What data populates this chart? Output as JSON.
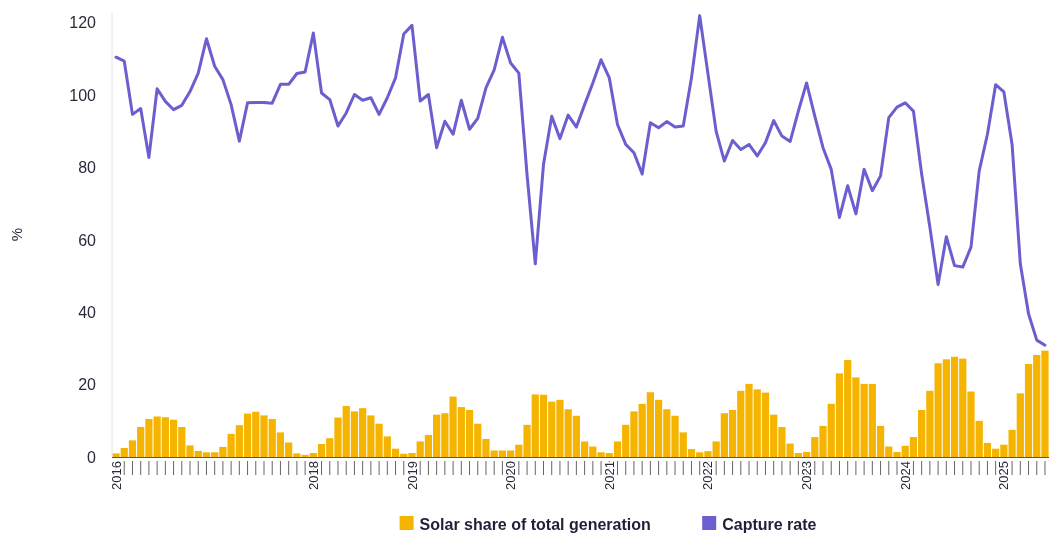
{
  "chart_data": {
    "type": "bar",
    "ylabel": "%",
    "categories": [
      "2016",
      null,
      null,
      null,
      null,
      null,
      null,
      null,
      null,
      null,
      null,
      null,
      null,
      null,
      null,
      null,
      null,
      null,
      null,
      null,
      null,
      null,
      null,
      null,
      "2018",
      null,
      null,
      null,
      null,
      null,
      null,
      null,
      null,
      null,
      null,
      null,
      "2019",
      null,
      null,
      null,
      null,
      null,
      null,
      null,
      null,
      null,
      null,
      null,
      "2020",
      null,
      null,
      null,
      null,
      null,
      null,
      null,
      null,
      null,
      null,
      null,
      "2021",
      null,
      null,
      null,
      null,
      null,
      null,
      null,
      null,
      null,
      null,
      null,
      "2022",
      null,
      null,
      null,
      null,
      null,
      null,
      null,
      null,
      null,
      null,
      null,
      "2023",
      null,
      null,
      null,
      null,
      null,
      null,
      null,
      null,
      null,
      null,
      null,
      "2024",
      null,
      null,
      null,
      null,
      null,
      null,
      null,
      null,
      null,
      null,
      null,
      "2025",
      null,
      null,
      null,
      null,
      null
    ],
    "series": [
      {
        "name": "Solar share of total generation",
        "color": "#f5b400",
        "values": [
          1,
          2.5,
          4.6,
          8.3,
          10.5,
          11.2,
          11,
          10.3,
          8.3,
          3.2,
          1.7,
          1.3,
          1.3,
          2.8,
          6.4,
          8.8,
          12,
          12.5,
          11.5,
          10.5,
          6.8,
          4,
          1,
          0.6,
          1.1,
          3.6,
          5.2,
          10.9,
          14.1,
          12.6,
          13.5,
          11.5,
          9.2,
          5.7,
          2.3,
          0.9,
          1.1,
          4.3,
          6.1,
          11.7,
          12.1,
          16.7,
          13.8,
          13,
          9.2,
          5,
          1.8,
          1.8,
          1.8,
          3.4,
          8.9,
          17.3,
          17.2,
          15.3,
          15.8,
          13.2,
          11.4,
          4.3,
          2.9,
          1.3,
          1.1,
          4.3,
          8.9,
          12.6,
          14.7,
          17.9,
          15.8,
          13.2,
          11.4,
          6.8,
          2.2,
          1.3,
          1.6,
          4.3,
          12.1,
          13,
          18.3,
          20.2,
          18.7,
          17.8,
          11.7,
          8.3,
          3.7,
          1.1,
          1.4,
          5.5,
          8.6,
          14.7,
          23.1,
          26.8,
          22,
          20.2,
          20.2,
          8.6,
          2.9,
          1.4,
          3.1,
          5.5,
          13,
          18.3,
          25.9,
          27,
          27.7,
          27.2,
          18.1,
          10,
          3.9,
          2.3,
          3.4,
          7.5,
          17.6,
          25.7,
          28.2,
          29.4
        ]
      },
      {
        "name": "Capture rate",
        "type": "line",
        "color": "#6b5fd0",
        "values": [
          110.5,
          109.4,
          94.7,
          96.3,
          82.8,
          101.8,
          98.3,
          96,
          97.2,
          101,
          106.1,
          115.6,
          108,
          104.3,
          97.4,
          87.3,
          97.9,
          98,
          98,
          97.8,
          103,
          103,
          106,
          106.4,
          117.2,
          100.6,
          98.8,
          91.5,
          95.1,
          100.2,
          98.6,
          99.3,
          94.7,
          99.3,
          104.8,
          116.9,
          119.3,
          98.4,
          100.2,
          85.5,
          92.8,
          89.2,
          98.6,
          90.6,
          93.6,
          102,
          107,
          116,
          108.9,
          106.1,
          78,
          53.4,
          80.9,
          94.2,
          88,
          94.5,
          91.2,
          97.4,
          103.4,
          109.8,
          104.8,
          91.9,
          86.4,
          84.1,
          78.2,
          92.4,
          91,
          92.7,
          91.2,
          91.5,
          104.8,
          122,
          106,
          90,
          81.8,
          87.5,
          85,
          86.4,
          83.2,
          86.9,
          93,
          88.7,
          87.2,
          95.6,
          103.4,
          94.2,
          85.5,
          79.5,
          66.2,
          75,
          67.2,
          79.5,
          73.6,
          77.7,
          93.8,
          96.7,
          97.9,
          95.6,
          78.2,
          63.5,
          47.7,
          60.9,
          52.9,
          52.5,
          58,
          79.1,
          89.2,
          102.9,
          100.9,
          86.4,
          53.4,
          39.6,
          32.3,
          30.9
        ]
      }
    ],
    "ylim": [
      0,
      123
    ],
    "yticks": [
      0,
      20,
      40,
      60,
      80,
      100,
      120
    ],
    "grid": false,
    "legend": "bottom"
  }
}
